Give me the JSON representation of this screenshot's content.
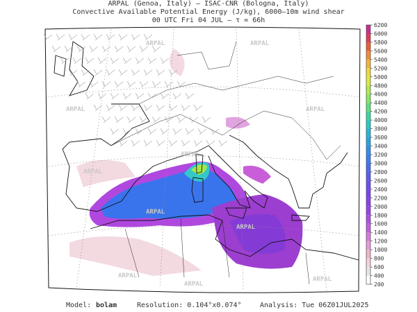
{
  "header": {
    "line1": "ARPAL (Genoa, Italy)  –  ISAC-CNR (Bologna, Italy)",
    "line2": "Convective Available Potential Energy (J/kg), 6000–10m wind shear",
    "line3": "00 UTC Fri 04 JUL  –  τ = 66h"
  },
  "watermark": "ARPAL",
  "colorbar": {
    "ticks": [
      200,
      400,
      600,
      800,
      1000,
      1200,
      1400,
      1600,
      1800,
      2000,
      2200,
      2400,
      2600,
      2800,
      3000,
      3200,
      3400,
      3600,
      3800,
      4000,
      4200,
      4400,
      4600,
      4800,
      5000,
      5200,
      5400,
      5600,
      5800,
      6000,
      6200
    ],
    "colors": [
      "#ffffff",
      "#e6e6e6",
      "#f3d3d8",
      "#ecb6c8",
      "#e89ad8",
      "#dc78e0",
      "#c45ee0",
      "#b04ee6",
      "#9c44ea",
      "#8a40ee",
      "#7a44f0",
      "#6a50f2",
      "#5a5cf2",
      "#4a6cf0",
      "#3c7ef0",
      "#3090ea",
      "#28a4e2",
      "#24b8d8",
      "#28cac4",
      "#38d8a0",
      "#5ce27a",
      "#8ae860",
      "#b4ea4e",
      "#dcea42",
      "#f0d83c",
      "#f4b43a",
      "#f28c38",
      "#ec6038",
      "#e03c5a",
      "#c83090"
    ]
  },
  "footer": {
    "model_label": "Model:",
    "model": "bolam",
    "resolution": "Resolution: 0.104°x0.074°",
    "analysis": "Analysis: Tue 06Z01JUL2025"
  }
}
